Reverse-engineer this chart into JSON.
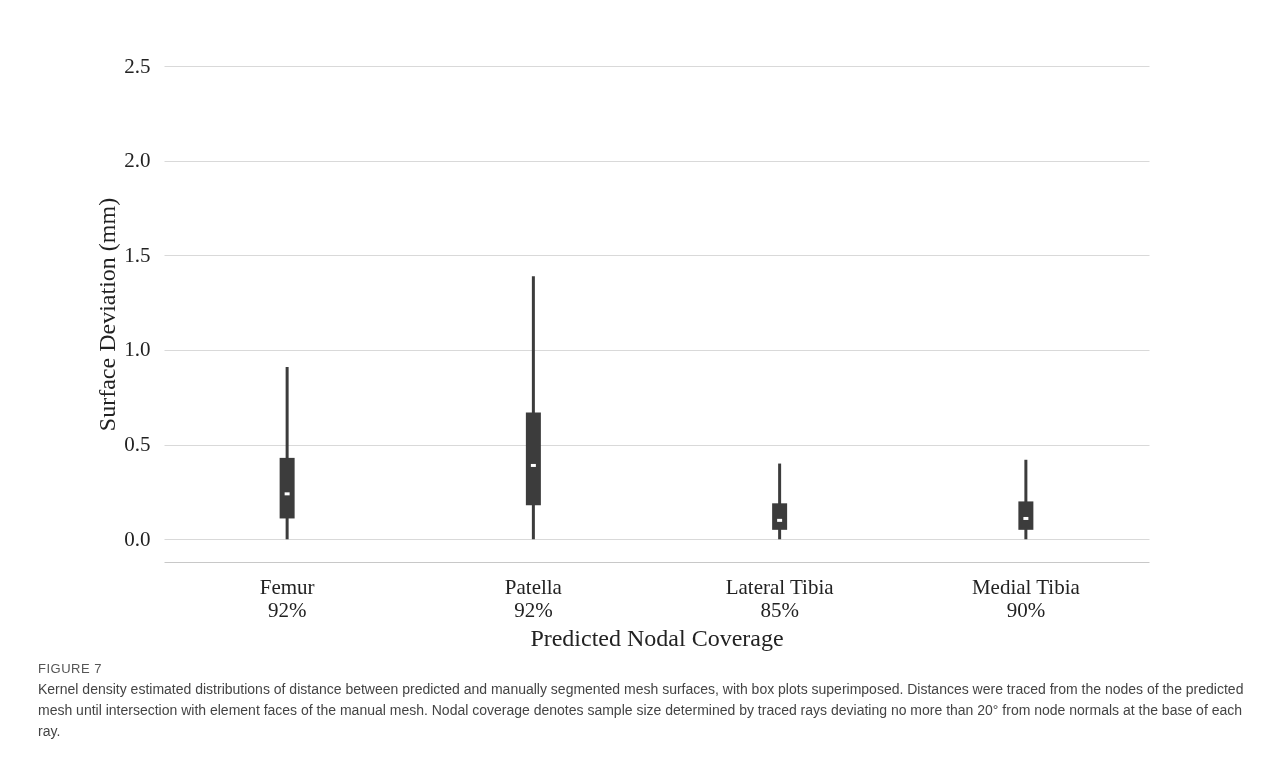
{
  "chart_data": {
    "type": "box",
    "xlabel": "Predicted Nodal Coverage",
    "ylabel": "Surface Deviation (mm)",
    "categories": [
      "Femur\n92%",
      "Patella\n92%",
      "Lateral Tibia\n85%",
      "Medial Tibia\n90%"
    ],
    "color": "#3c3c3c",
    "boxes": [
      {
        "low": 0,
        "q1": 0.11,
        "median": 0.24,
        "q3": 0.43,
        "high": 0.91
      },
      {
        "low": 0,
        "q1": 0.18,
        "median": 0.39,
        "q3": 0.67,
        "high": 1.39
      },
      {
        "low": 0,
        "q1": 0.05,
        "median": 0.1,
        "q3": 0.19,
        "high": 0.4
      },
      {
        "low": 0,
        "q1": 0.05,
        "median": 0.11,
        "q3": 0.2,
        "high": 0.42
      }
    ],
    "ylim": [
      -0.12,
      2.5
    ],
    "yticks": [
      {
        "value": 0,
        "label": "0.0"
      },
      {
        "value": 0.5,
        "label": "0.5"
      },
      {
        "value": 1,
        "label": "1.0"
      },
      {
        "value": 1.5,
        "label": "1.5"
      },
      {
        "value": 2,
        "label": "2.0"
      },
      {
        "value": 2.5,
        "label": "2.5"
      }
    ],
    "grid": "y",
    "annotations": [
      "FIGURE 7",
      "Kernel density estimated distributions of distance between predicted and manually segmented mesh surfaces, with box plots superimposed. Distances were traced from the nodes of the predicted mesh until intersection with element faces of the manual mesh. Nodal coverage denotes sample size determined by traced rays deviating no more than 20° from node normals at the base of each ray."
    ]
  }
}
